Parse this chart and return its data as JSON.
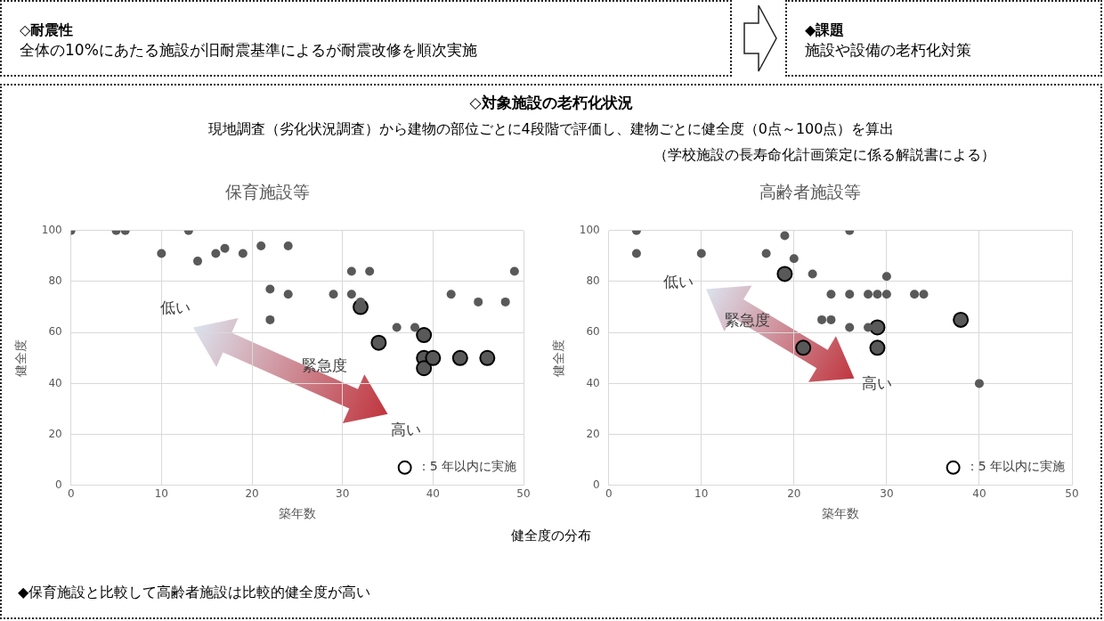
{
  "chart_data": [
    {
      "type": "other",
      "title": "◇耐震性",
      "annotations": [
        "全体の10%にあたる施設が旧耐震基準によるが耐震改修を順次実施"
      ]
    },
    {
      "type": "other",
      "title": "◆課題",
      "annotations": [
        "施設や設備の老朽化対策"
      ]
    },
    {
      "type": "other",
      "title": "◇対象施設の老朽化状況",
      "annotations": [
        "現地調査（劣化状況調査）から建物の部位ごとに4段階で評価し、建物ごとに健全度（0点～100点）を算出",
        "（学校施設の長寿命化計画策定に係る解説書による）"
      ]
    },
    {
      "type": "scatter",
      "title": "保育施設等",
      "xlabel": "築年数",
      "ylabel": "健全度",
      "xlim": [
        0,
        50
      ],
      "xticks": [
        0,
        10,
        20,
        30,
        40,
        50
      ],
      "ylim": [
        0,
        100
      ],
      "yticks": [
        0,
        20,
        40,
        60,
        80,
        100
      ],
      "grid": true,
      "legend": "bottom right",
      "marker": "circle",
      "annotations": [
        "低い",
        "緊急度",
        "高い"
      ],
      "series": [
        {
          "color": "#595959",
          "x": [
            0,
            5,
            6,
            10,
            13,
            14,
            16,
            17,
            19,
            21,
            22,
            22,
            24,
            24,
            29,
            31,
            31,
            32,
            33,
            36,
            38,
            42,
            45,
            48,
            49
          ],
          "values": [
            100,
            100,
            100,
            91,
            100,
            88,
            91,
            93,
            91,
            94,
            77,
            65,
            94,
            75,
            75,
            84,
            75,
            72,
            84,
            62,
            62,
            75,
            72,
            72,
            84
          ]
        },
        {
          "name": "：5 年以内に実施",
          "color": "#595959",
          "x": [
            32,
            34,
            39,
            39,
            39,
            40,
            43,
            46
          ],
          "values": [
            70,
            56,
            59,
            50,
            46,
            50,
            50,
            50
          ]
        }
      ]
    },
    {
      "type": "scatter",
      "title": "高齢者施設等",
      "xlabel": "築年数",
      "ylabel": "健全度",
      "xlim": [
        0,
        50
      ],
      "xticks": [
        0,
        10,
        20,
        30,
        40,
        50
      ],
      "ylim": [
        0,
        100
      ],
      "yticks": [
        0,
        20,
        40,
        60,
        80,
        100
      ],
      "grid": true,
      "legend": "bottom right",
      "marker": "circle",
      "annotations": [
        "低い",
        "緊急度",
        "高い"
      ],
      "series": [
        {
          "color": "#595959",
          "x": [
            3,
            3,
            10,
            17,
            19,
            20,
            22,
            24,
            26,
            23,
            24,
            26,
            26,
            28,
            29,
            30,
            30,
            28,
            33,
            34,
            40
          ],
          "values": [
            100,
            91,
            91,
            91,
            98,
            89,
            83,
            75,
            75,
            65,
            65,
            62,
            100,
            75,
            75,
            75,
            82,
            62,
            75,
            75,
            40
          ]
        },
        {
          "name": "：5 年以内に実施",
          "color": "#595959",
          "x": [
            19,
            21,
            29,
            29,
            38
          ],
          "values": [
            83,
            54,
            62,
            54,
            65
          ]
        }
      ]
    },
    {
      "type": "other",
      "annotations": [
        "健全度の分布",
        "◆保育施設と比較して高齢者施設は比較的健全度が高い"
      ]
    }
  ]
}
